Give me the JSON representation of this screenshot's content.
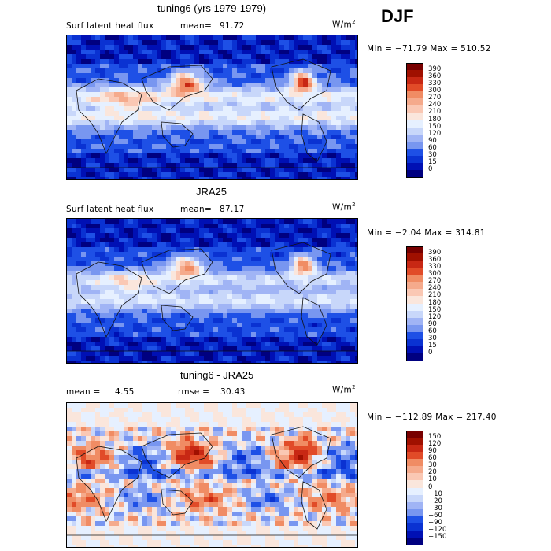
{
  "season": "DJF",
  "colors": {
    "scale_pos": [
      "#000080",
      "#0010b4",
      "#0a32d2",
      "#1e50e6",
      "#4678eb",
      "#7896f0",
      "#a0b4f5",
      "#c8d7fa",
      "#e6f0ff",
      "#fae6dc",
      "#fac8b4",
      "#f5aa8c",
      "#f08c64",
      "#eb6e46",
      "#e14b28",
      "#c82814",
      "#a01000",
      "#780000"
    ],
    "scale_diff": [
      "#000080",
      "#0010b4",
      "#0a32d2",
      "#1e50e6",
      "#4678eb",
      "#7896f0",
      "#a0b4f5",
      "#c8d7fa",
      "#e6f0ff",
      "#fae6dc",
      "#fac8b4",
      "#f5aa8c",
      "#f08c64",
      "#eb6e46",
      "#e14b28",
      "#c82814",
      "#a01000",
      "#780000"
    ]
  },
  "chart_data": [
    {
      "type": "heatmap",
      "title": "tuning6 (yrs 1979-1979)",
      "variable": "Surf latent heat flux",
      "mean_label": "mean=",
      "mean": "91.72",
      "units": "W/m",
      "units_exp": "2",
      "range_label": "Min = −71.79 Max = 510.52",
      "min": -71.79,
      "max": 510.52,
      "levels": [
        "0",
        "15",
        "30",
        "60",
        "90",
        "120",
        "150",
        "180",
        "210",
        "240",
        "270",
        "300",
        "330",
        "360",
        "390"
      ]
    },
    {
      "type": "heatmap",
      "title": "JRA25",
      "variable": "Surf latent heat flux",
      "mean_label": "mean=",
      "mean": "87.17",
      "units": "W/m",
      "units_exp": "2",
      "range_label": "Min =  −2.04 Max = 314.81",
      "min": -2.04,
      "max": 314.81,
      "levels": [
        "0",
        "15",
        "30",
        "60",
        "90",
        "120",
        "150",
        "180",
        "210",
        "240",
        "270",
        "300",
        "330",
        "360",
        "390"
      ]
    },
    {
      "type": "heatmap",
      "title": "tuning6 - JRA25",
      "mean_label": "mean =",
      "mean": "4.55",
      "rmse_label": "rmse =",
      "rmse": "30.43",
      "units": "W/m",
      "units_exp": "2",
      "range_label": "Min = −112.89 Max = 217.40",
      "min": -112.89,
      "max": 217.4,
      "levels": [
        "−150",
        "−120",
        "−90",
        "−60",
        "−30",
        "−20",
        "−10",
        "0",
        "10",
        "20",
        "30",
        "60",
        "90",
        "120",
        "150"
      ]
    }
  ]
}
